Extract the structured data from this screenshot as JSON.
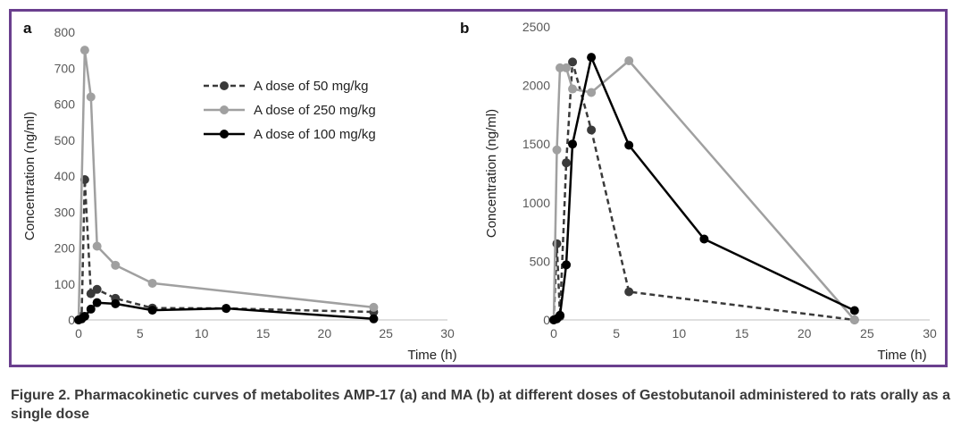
{
  "figure": {
    "caption": "Figure 2. Pharmacokinetic curves of metabolites AMP-17 (a) and MA (b) at different doses of Gestobutanoil administered to rats orally as a single dose",
    "frame_color": "#6a3f8e"
  },
  "chart_data": [
    {
      "type": "line",
      "panel_label": "a",
      "xlabel": "Time (h)",
      "ylabel": "Concentration (ng/ml)",
      "xlim": [
        0,
        30
      ],
      "ylim": [
        0,
        800
      ],
      "xticks": [
        "0",
        "5",
        "10",
        "15",
        "20",
        "25",
        "30"
      ],
      "yticks": [
        "0",
        "100",
        "200",
        "300",
        "400",
        "500",
        "600",
        "700",
        "800"
      ],
      "grid": false,
      "legend_position": "top-center",
      "series": [
        {
          "name": "A dose of 50 mg/kg",
          "color": "#3a3a3a",
          "style": "dashed",
          "x": [
            0,
            0.25,
            0.5,
            1,
            1.5,
            3,
            6,
            12,
            24
          ],
          "y": [
            0,
            10,
            390,
            73,
            85,
            60,
            33,
            32,
            22
          ]
        },
        {
          "name": "A dose of 250 mg/kg",
          "color": "#a0a0a0",
          "style": "solid",
          "x": [
            0,
            0.5,
            1,
            1.5,
            3,
            6,
            24
          ],
          "y": [
            0,
            750,
            620,
            205,
            152,
            102,
            35
          ]
        },
        {
          "name": "A dose of 100 mg/kg",
          "color": "#000000",
          "style": "solid",
          "x": [
            0,
            0.25,
            0.5,
            1,
            1.5,
            3,
            6,
            12,
            24
          ],
          "y": [
            0,
            3,
            10,
            30,
            48,
            45,
            27,
            32,
            3
          ]
        }
      ]
    },
    {
      "type": "line",
      "panel_label": "b",
      "xlabel": "Time (h)",
      "ylabel": "Concentration (ng/ml)",
      "xlim": [
        0,
        30
      ],
      "ylim": [
        0,
        2500
      ],
      "xticks": [
        "0",
        "5",
        "10",
        "15",
        "20",
        "25",
        "30"
      ],
      "yticks": [
        "0",
        "500",
        "1000",
        "1500",
        "2000",
        "2500"
      ],
      "grid": false,
      "series": [
        {
          "name": "A dose of 50 mg/kg",
          "color": "#3a3a3a",
          "style": "dashed",
          "x": [
            0,
            0.25,
            0.5,
            1,
            1.5,
            3,
            6,
            24
          ],
          "y": [
            0,
            650,
            30,
            1340,
            2200,
            1620,
            240,
            0
          ]
        },
        {
          "name": "A dose of 250 mg/kg",
          "color": "#a0a0a0",
          "style": "solid",
          "x": [
            0,
            0.25,
            0.5,
            1,
            1.5,
            3,
            6,
            24
          ],
          "y": [
            0,
            1450,
            2150,
            2150,
            1970,
            1940,
            2210,
            0
          ]
        },
        {
          "name": "A dose of 100 mg/kg",
          "color": "#000000",
          "style": "solid",
          "x": [
            0,
            0.25,
            0.5,
            1,
            1.5,
            3,
            6,
            12,
            24
          ],
          "y": [
            0,
            10,
            40,
            470,
            1500,
            2240,
            1490,
            690,
            80
          ]
        }
      ]
    }
  ]
}
